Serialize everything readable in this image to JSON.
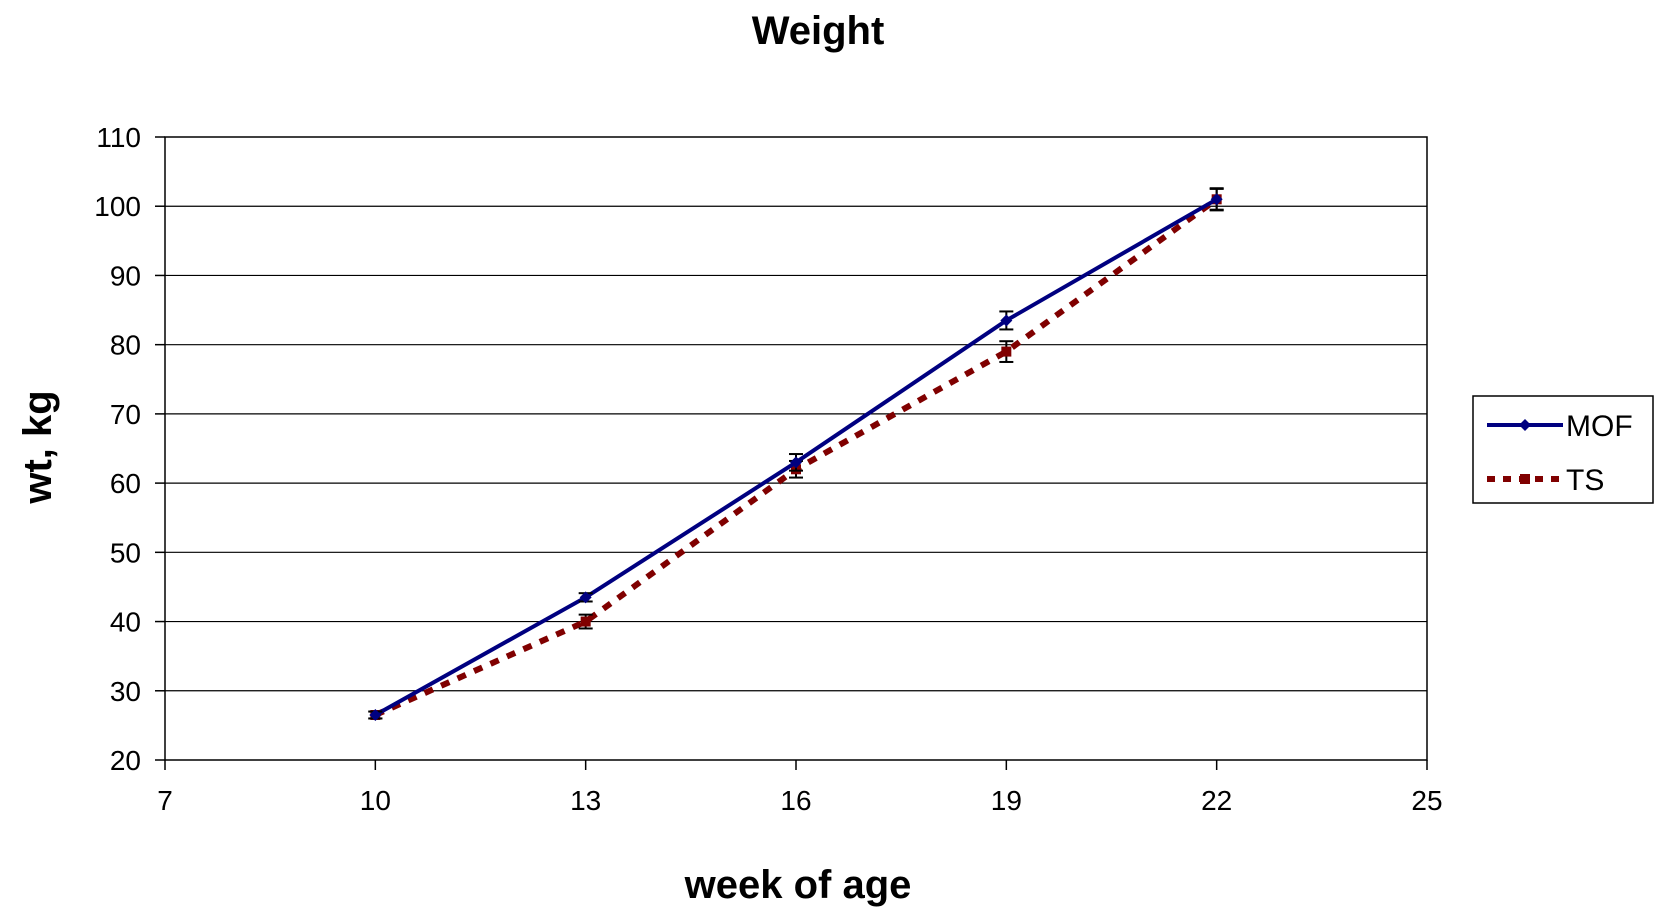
{
  "chart_data": {
    "type": "line",
    "title": "Weight",
    "xlabel": "week of age",
    "ylabel": "wt, kg",
    "xlim": [
      7,
      25
    ],
    "ylim": [
      20,
      110
    ],
    "xticks": [
      7,
      10,
      13,
      16,
      19,
      22,
      25
    ],
    "yticks": [
      20,
      30,
      40,
      50,
      60,
      70,
      80,
      90,
      100,
      110
    ],
    "grid": "horizontal",
    "legend_position": "right",
    "series": [
      {
        "name": "MOF",
        "color": "#000080",
        "line_style": "solid",
        "marker": "diamond",
        "points": [
          {
            "x": 10,
            "y": 26.5,
            "err": 0.5
          },
          {
            "x": 13,
            "y": 43.5,
            "err": 0.6
          },
          {
            "x": 16,
            "y": 63.0,
            "err": 1.2
          },
          {
            "x": 19,
            "y": 83.5,
            "err": 1.3
          },
          {
            "x": 22,
            "y": 101.0,
            "err": 1.5
          }
        ]
      },
      {
        "name": "TS",
        "color": "#800000",
        "line_style": "dashed",
        "marker": "square",
        "points": [
          {
            "x": 10,
            "y": 26.5,
            "err": 0.5
          },
          {
            "x": 13,
            "y": 40.0,
            "err": 1.0
          },
          {
            "x": 16,
            "y": 62.0,
            "err": 1.2
          },
          {
            "x": 19,
            "y": 79.0,
            "err": 1.5
          },
          {
            "x": 22,
            "y": 101.0,
            "err": 1.6
          }
        ]
      }
    ]
  }
}
